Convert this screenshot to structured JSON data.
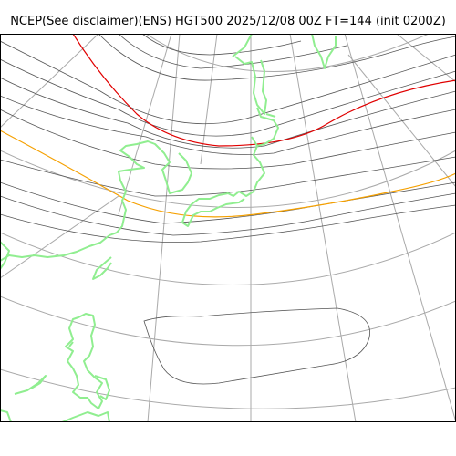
{
  "title": "NCEP(See disclaimer)(ENS) HGT500 2025/12/08 00Z FT=144 (init 0200Z)",
  "colors": {
    "frame": "#000000",
    "graticule": "#a9a9a9",
    "contour": "#555555",
    "highlight_contour_red": "#e00000",
    "highlight_contour_orange": "#f5a000",
    "coastline": "#90ee90"
  },
  "map": {
    "projection": "polar-stereographic",
    "field": "500 hPa geopotential height",
    "highlighted_contours": [
      "red",
      "orange"
    ]
  }
}
